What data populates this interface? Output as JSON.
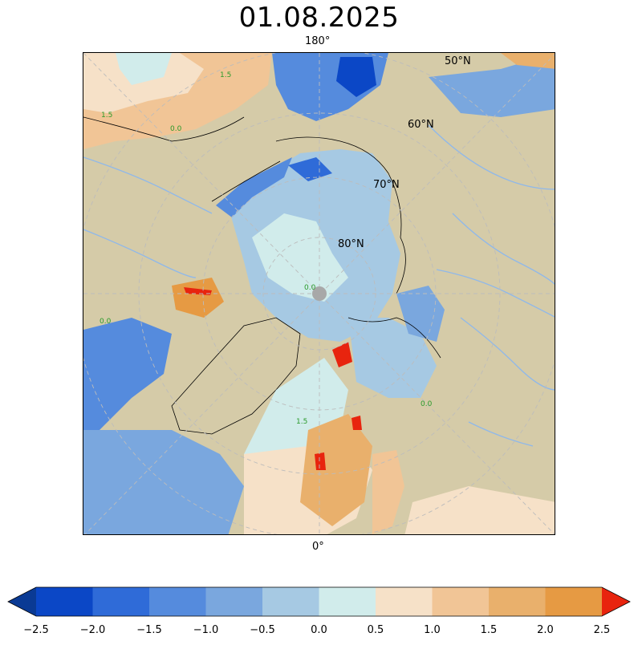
{
  "title": "01.08.2025",
  "map": {
    "projection": "north-polar-stereographic",
    "labels": {
      "top_meridian": "180°",
      "bottom_meridian": "0°",
      "lat_50": "50°N",
      "lat_60": "60°N",
      "lat_70": "70°N",
      "lat_80": "80°N"
    },
    "contour_label": "0.0",
    "contour_label_alt": "1.5",
    "colors": {
      "land": "#d5cba8",
      "rivers": "#8fb8ea",
      "coastline": "#000000",
      "gridline": "#bcbcbc"
    }
  },
  "colorbar": {
    "ticks": [
      "−2.5",
      "−2.0",
      "−1.5",
      "−1.0",
      "−0.5",
      "0.0",
      "0.5",
      "1.0",
      "1.5",
      "2.0",
      "2.5"
    ],
    "bins": [
      {
        "from": -2.5,
        "to": -2.0,
        "color": "#0b47c6"
      },
      {
        "from": -2.0,
        "to": -1.5,
        "color": "#2f6bd8"
      },
      {
        "from": -1.5,
        "to": -1.0,
        "color": "#558bdd"
      },
      {
        "from": -1.0,
        "to": -0.5,
        "color": "#7aa7de"
      },
      {
        "from": -0.5,
        "to": 0.0,
        "color": "#a6c9e3"
      },
      {
        "from": 0.0,
        "to": 0.5,
        "color": "#d1eceb"
      },
      {
        "from": 0.5,
        "to": 1.0,
        "color": "#f6e1c8"
      },
      {
        "from": 1.0,
        "to": 1.5,
        "color": "#f1c596"
      },
      {
        "from": 1.5,
        "to": 2.0,
        "color": "#e9b06c"
      },
      {
        "from": 2.0,
        "to": 2.5,
        "color": "#e69a43"
      }
    ],
    "under_color": "#0a3a94",
    "over_color": "#e8240e"
  }
}
